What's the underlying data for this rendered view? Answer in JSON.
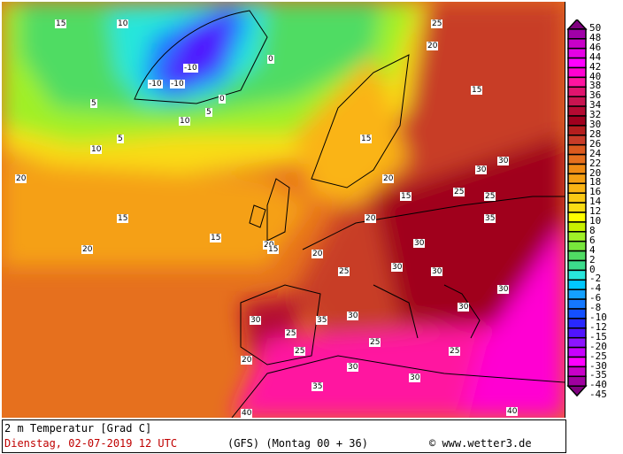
{
  "footer": {
    "title": "2 m Temperatur [Grad C]",
    "date": "Dienstag, 02-07-2019   12 UTC",
    "model": "(GFS)  (Montag 00 + 36)",
    "copyright": "© www.wetter3.de"
  },
  "legend": {
    "labels": [
      "50",
      "48",
      "46",
      "44",
      "42",
      "40",
      "38",
      "36",
      "34",
      "32",
      "30",
      "28",
      "26",
      "24",
      "22",
      "20",
      "18",
      "16",
      "14",
      "12",
      "10",
      "8",
      "6",
      "4",
      "2",
      "0",
      "-2",
      "-4",
      "-6",
      "-8",
      "-10",
      "-12",
      "-15",
      "-20",
      "-25",
      "-30",
      "-35",
      "-40",
      "-45"
    ],
    "colors": [
      "#800080",
      "#a000a8",
      "#c800c8",
      "#e600e6",
      "#ff00ff",
      "#ff00d2",
      "#ff14a0",
      "#e0146e",
      "#c81450",
      "#b40a32",
      "#a0001e",
      "#b41e1e",
      "#c83c28",
      "#dc5a1e",
      "#e6701e",
      "#f08c14",
      "#f5a014",
      "#fab414",
      "#fac814",
      "#fadc14",
      "#ffff00",
      "#c8f000",
      "#a0f028",
      "#78e63c",
      "#50dc64",
      "#3cdc8c",
      "#28e6dc",
      "#00c8ff",
      "#14a0ff",
      "#1478ff",
      "#1450ff",
      "#2828ff",
      "#5014ff",
      "#8c14ff",
      "#c800ff",
      "#ff00ff",
      "#c800c8",
      "#a000a0",
      "#800080"
    ]
  },
  "map_labels": [
    "15",
    "10",
    "5",
    "0",
    "-10",
    "-10",
    "-10",
    "0",
    "5",
    "10",
    "20",
    "25",
    "15",
    "5",
    "10",
    "15",
    "20",
    "15",
    "20",
    "25",
    "30",
    "30",
    "25",
    "20",
    "15",
    "20",
    "15",
    "20",
    "25",
    "30",
    "30",
    "35",
    "30",
    "25",
    "30",
    "35",
    "30",
    "40",
    "25",
    "30",
    "20",
    "30",
    "25",
    "30",
    "40",
    "35",
    "30",
    "25",
    "20",
    "15"
  ]
}
